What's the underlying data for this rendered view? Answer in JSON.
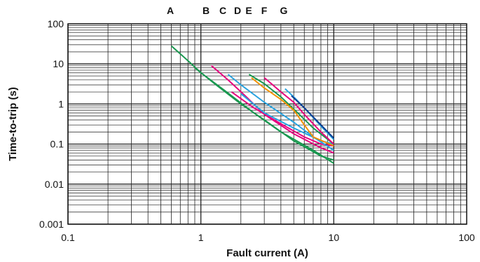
{
  "chart_data": {
    "type": "line",
    "title": "",
    "xlabel": "Fault current (A)",
    "ylabel": "Time-to-trip (s)",
    "x_scale": "log",
    "y_scale": "log",
    "xlim": [
      0.1,
      100
    ],
    "ylim": [
      0.001,
      100
    ],
    "grid": true,
    "x_ticks": [
      "0.1",
      "1",
      "10",
      "100"
    ],
    "y_ticks": [
      "0.001",
      "0.01",
      "0.1",
      "1",
      "10",
      "100"
    ],
    "curve_labels": [
      "A",
      "B",
      "C",
      "D",
      "E",
      "F",
      "G"
    ],
    "series": [
      {
        "color": "#1a9850",
        "points": [
          [
            0.6,
            28
          ],
          [
            0.8,
            12
          ],
          [
            1.0,
            6
          ],
          [
            1.5,
            2.2
          ],
          [
            2.5,
            0.6
          ],
          [
            4,
            0.2
          ],
          [
            7,
            0.07
          ],
          [
            10,
            0.033
          ]
        ]
      },
      {
        "color": "#1a9850",
        "points": [
          [
            0.9,
            8
          ],
          [
            1.3,
            3
          ],
          [
            2,
            1
          ],
          [
            3,
            0.4
          ],
          [
            5,
            0.12
          ],
          [
            8,
            0.05
          ],
          [
            10,
            0.04
          ]
        ]
      },
      {
        "color": "#e6007e",
        "points": [
          [
            1.2,
            9
          ],
          [
            1.6,
            4
          ],
          [
            2.2,
            1.5
          ],
          [
            3,
            0.55
          ],
          [
            5,
            0.18
          ],
          [
            8,
            0.08
          ],
          [
            10,
            0.06
          ]
        ]
      },
      {
        "color": "#e6007e",
        "points": [
          [
            1.7,
            2
          ],
          [
            2.5,
            0.8
          ],
          [
            4,
            0.32
          ],
          [
            6,
            0.15
          ],
          [
            8,
            0.1
          ],
          [
            10,
            0.09
          ]
        ]
      },
      {
        "color": "#29a3e0",
        "points": [
          [
            1.6,
            5.5
          ],
          [
            2,
            3
          ],
          [
            3,
            1.1
          ],
          [
            5,
            0.35
          ],
          [
            7,
            0.15
          ],
          [
            10,
            0.07
          ]
        ]
      },
      {
        "color": "#29a3e0",
        "points": [
          [
            2,
            1.8
          ],
          [
            3,
            0.6
          ],
          [
            5,
            0.25
          ],
          [
            8,
            0.12
          ],
          [
            10,
            0.1
          ]
        ]
      },
      {
        "color": "#1a9850",
        "points": [
          [
            2.3,
            5.5
          ],
          [
            3,
            3.2
          ],
          [
            4,
            1.5
          ],
          [
            5.5,
            0.55
          ],
          [
            7,
            0.25
          ],
          [
            10,
            0.1
          ]
        ]
      },
      {
        "color": "#f39200",
        "points": [
          [
            2.4,
            4.5
          ],
          [
            3,
            2.5
          ],
          [
            4,
            1.3
          ],
          [
            5,
            0.7
          ],
          [
            6,
            0.3
          ],
          [
            7,
            0.15
          ],
          [
            10,
            0.09
          ]
        ]
      },
      {
        "color": "#e6007e",
        "points": [
          [
            3,
            4.5
          ],
          [
            4,
            2
          ],
          [
            5,
            1.1
          ],
          [
            6,
            0.55
          ],
          [
            8,
            0.2
          ],
          [
            10,
            0.1
          ]
        ]
      },
      {
        "color": "#29a3e0",
        "points": [
          [
            4.3,
            2.4
          ],
          [
            5,
            1.5
          ],
          [
            6,
            0.8
          ],
          [
            8,
            0.28
          ],
          [
            10,
            0.13
          ]
        ]
      },
      {
        "color": "#0d3c8f",
        "points": [
          [
            4.8,
            1.6
          ],
          [
            6,
            0.8
          ],
          [
            8,
            0.3
          ],
          [
            10,
            0.14
          ]
        ]
      }
    ]
  }
}
